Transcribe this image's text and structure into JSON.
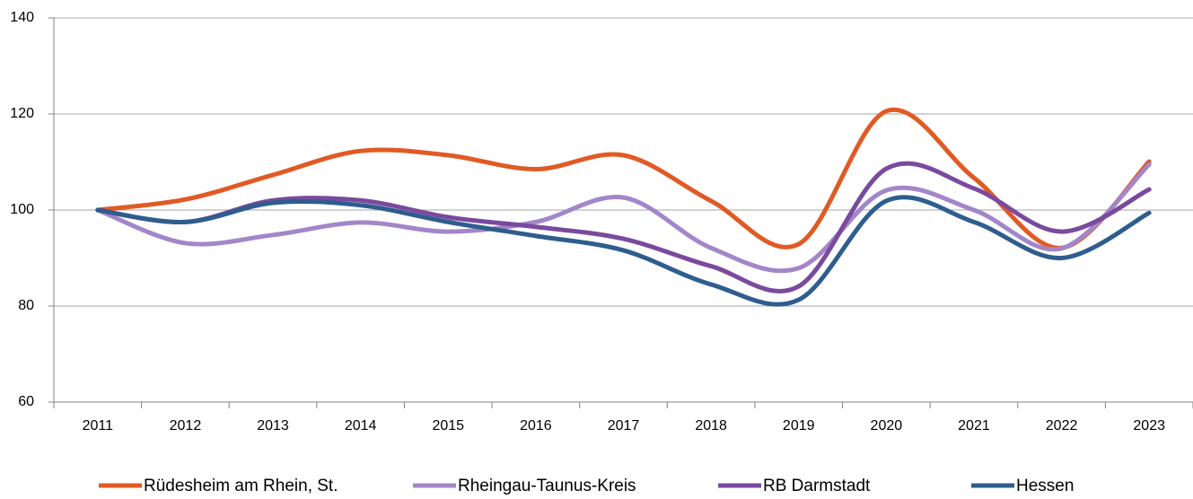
{
  "chart_data": {
    "type": "line",
    "categories": [
      "2011",
      "2012",
      "2013",
      "2014",
      "2015",
      "2016",
      "2017",
      "2018",
      "2019",
      "2020",
      "2021",
      "2022",
      "2023"
    ],
    "series": [
      {
        "name": "Rüdesheim am Rhein, St.",
        "color": "#e15a24",
        "values": [
          100,
          102.2,
          107.3,
          112.3,
          111.4,
          108.5,
          111.4,
          101.9,
          92.9,
          120.6,
          106.7,
          92.1,
          110.1
        ]
      },
      {
        "name": "Rheingau-Taunus-Kreis",
        "color": "#a386c9",
        "values": [
          100,
          93.1,
          94.8,
          97.4,
          95.5,
          97.5,
          102.6,
          92.1,
          87.9,
          104.1,
          100,
          92,
          109.5
        ]
      },
      {
        "name": "RB Darmstadt",
        "color": "#7a4a9e",
        "values": [
          100,
          97.5,
          102,
          102,
          98.5,
          96.5,
          94,
          88.3,
          84.1,
          108.6,
          104.5,
          95.5,
          104.3
        ]
      },
      {
        "name": "Hessen",
        "color": "#2e5d8e",
        "values": [
          100,
          97.5,
          101.5,
          101,
          97.5,
          94.6,
          91.6,
          84.5,
          81.3,
          101.9,
          97.5,
          90,
          99.4
        ]
      }
    ],
    "ylim": [
      60,
      140
    ],
    "yticks": [
      60,
      80,
      100,
      120,
      140
    ],
    "grid": true,
    "legend": "bottom"
  }
}
